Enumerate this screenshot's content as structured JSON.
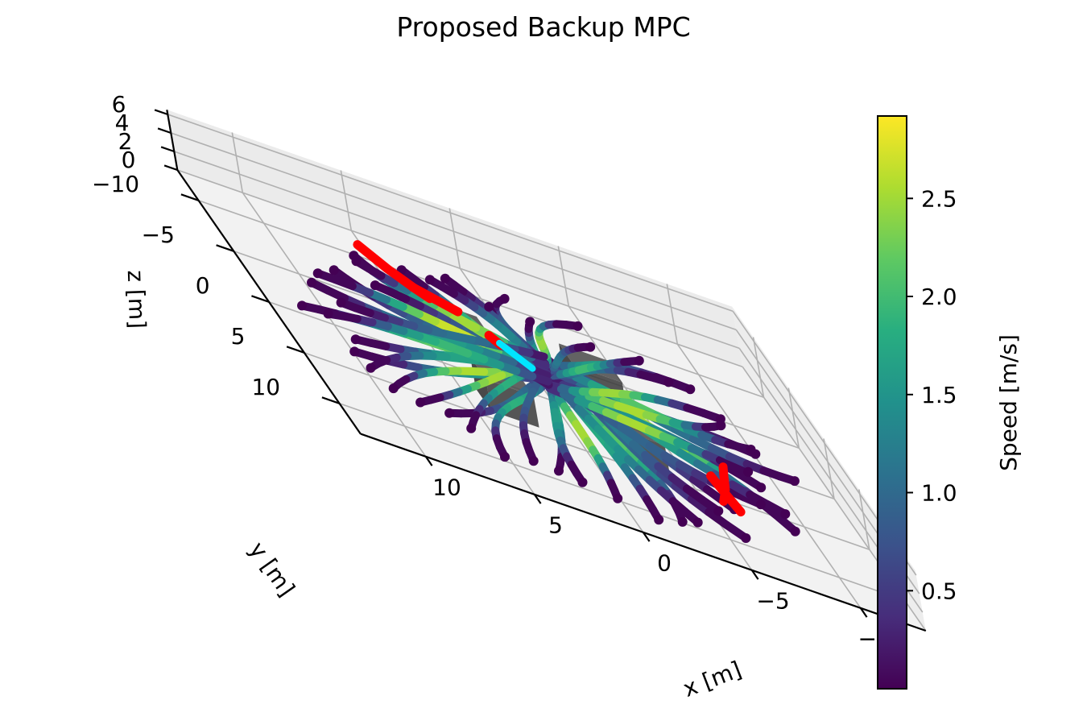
{
  "chart_data": {
    "type": "3d-line",
    "title": "Proposed Backup MPC",
    "axes": {
      "x": {
        "label": "x [m]",
        "ticks": [
          -10,
          -5,
          0,
          5,
          10
        ],
        "range": [
          -13,
          13
        ]
      },
      "y": {
        "label": "y [m]",
        "ticks": [
          -10,
          -5,
          0,
          5,
          10
        ],
        "range": [
          -13,
          13
        ]
      },
      "z": {
        "label": "z [m]",
        "ticks": [
          0,
          2,
          4,
          6
        ],
        "range": [
          0,
          6.5
        ]
      }
    },
    "grid": true,
    "colorbar": {
      "label": "Speed [m/s]",
      "colormap": "viridis",
      "range": [
        0.0,
        2.92
      ],
      "ticks": [
        0.5,
        1.0,
        1.5,
        2.0,
        2.5
      ]
    },
    "description_series": [
      {
        "kind": "agent-trajectories",
        "count": 48,
        "color": "speed (viridis)"
      },
      {
        "kind": "backup-trajectories",
        "color": "#ff0000"
      },
      {
        "kind": "goal-segment",
        "color": "#00e5ff"
      },
      {
        "kind": "obstacles",
        "count": 4,
        "color": "#333333"
      }
    ]
  },
  "colors": {
    "viridis": [
      "#440154",
      "#472d7b",
      "#3b528b",
      "#2c728e",
      "#21918c",
      "#28ae80",
      "#5ec962",
      "#addc30",
      "#fde725"
    ],
    "backup": "#ff0000",
    "goal": "#00e5ff",
    "obstacle": "#2f2f2f",
    "pane": "#f2f2f2",
    "grid": "#b0b0b0"
  }
}
